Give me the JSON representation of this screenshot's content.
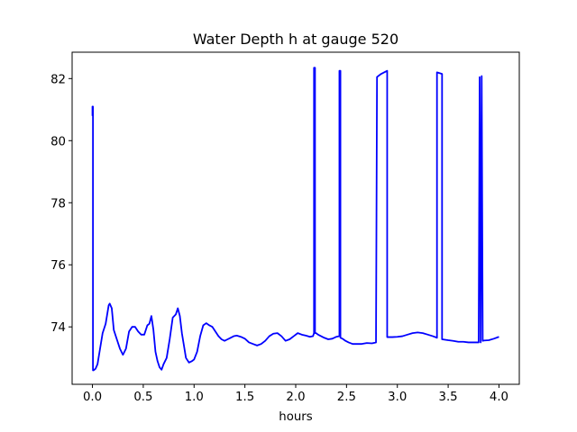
{
  "chart_data": {
    "type": "line",
    "title": "Water Depth h at gauge 520",
    "xlabel": "hours",
    "ylabel": "",
    "xlim": [
      -0.2,
      4.2
    ],
    "ylim": [
      72.15,
      82.85
    ],
    "xticks": [
      0.0,
      0.5,
      1.0,
      1.5,
      2.0,
      2.5,
      3.0,
      3.5,
      4.0
    ],
    "xtick_labels": [
      "0.0",
      "0.5",
      "1.0",
      "1.5",
      "2.0",
      "2.5",
      "3.0",
      "3.5",
      "4.0"
    ],
    "yticks": [
      74,
      76,
      78,
      80,
      82
    ],
    "ytick_labels": [
      "74",
      "76",
      "78",
      "80",
      "82"
    ],
    "grid": false,
    "series": [
      {
        "color": "#0000ff",
        "x": [
          0.0,
          0.0,
          0.005,
          0.005,
          0.01,
          0.01,
          0.03,
          0.05,
          0.07,
          0.1,
          0.13,
          0.16,
          0.17,
          0.19,
          0.21,
          0.24,
          0.27,
          0.3,
          0.33,
          0.36,
          0.39,
          0.42,
          0.45,
          0.48,
          0.51,
          0.54,
          0.56,
          0.58,
          0.6,
          0.62,
          0.64,
          0.66,
          0.68,
          0.7,
          0.73,
          0.76,
          0.79,
          0.82,
          0.84,
          0.86,
          0.88,
          0.9,
          0.92,
          0.95,
          0.98,
          1.0,
          1.03,
          1.06,
          1.09,
          1.12,
          1.15,
          1.18,
          1.21,
          1.24,
          1.27,
          1.3,
          1.33,
          1.36,
          1.39,
          1.42,
          1.46,
          1.5,
          1.54,
          1.58,
          1.62,
          1.66,
          1.7,
          1.74,
          1.78,
          1.82,
          1.86,
          1.9,
          1.94,
          1.98,
          2.02,
          2.06,
          2.1,
          2.14,
          2.17,
          2.18,
          2.18,
          2.19,
          2.19,
          2.2,
          2.22,
          2.25,
          2.28,
          2.32,
          2.36,
          2.4,
          2.43,
          2.43,
          2.44,
          2.44,
          2.46,
          2.49,
          2.52,
          2.56,
          2.6,
          2.65,
          2.7,
          2.75,
          2.79,
          2.8,
          2.8,
          2.84,
          2.9,
          2.9,
          2.95,
          3.0,
          3.05,
          3.1,
          3.15,
          3.2,
          3.25,
          3.3,
          3.35,
          3.39,
          3.39,
          3.44,
          3.44,
          3.5,
          3.55,
          3.6,
          3.65,
          3.7,
          3.75,
          3.8,
          3.81,
          3.81,
          3.82,
          3.82,
          3.83,
          3.83,
          3.84,
          3.84,
          3.85,
          3.9,
          3.95,
          4.0
        ],
        "y": [
          80.8,
          81.1,
          81.1,
          72.6,
          72.6,
          72.6,
          72.65,
          72.8,
          73.2,
          73.8,
          74.1,
          74.7,
          74.75,
          74.6,
          73.9,
          73.6,
          73.3,
          73.1,
          73.3,
          73.85,
          74.0,
          74.0,
          73.85,
          73.75,
          73.75,
          74.05,
          74.1,
          74.35,
          73.9,
          73.2,
          72.9,
          72.7,
          72.62,
          72.8,
          73.0,
          73.6,
          74.3,
          74.4,
          74.6,
          74.35,
          73.8,
          73.4,
          73.0,
          72.85,
          72.9,
          72.95,
          73.2,
          73.7,
          74.05,
          74.12,
          74.05,
          74.0,
          73.85,
          73.7,
          73.6,
          73.55,
          73.6,
          73.65,
          73.7,
          73.72,
          73.68,
          73.62,
          73.5,
          73.45,
          73.4,
          73.45,
          73.55,
          73.7,
          73.78,
          73.8,
          73.7,
          73.55,
          73.6,
          73.7,
          73.8,
          73.75,
          73.72,
          73.68,
          73.7,
          73.8,
          82.35,
          82.35,
          73.8,
          73.8,
          73.75,
          73.7,
          73.65,
          73.6,
          73.62,
          73.68,
          73.7,
          82.25,
          82.25,
          73.65,
          73.62,
          73.55,
          73.5,
          73.45,
          73.45,
          73.45,
          73.48,
          73.47,
          73.5,
          82.05,
          82.05,
          82.15,
          82.25,
          73.67,
          73.67,
          73.68,
          73.7,
          73.75,
          73.8,
          73.82,
          73.8,
          73.75,
          73.7,
          73.65,
          82.2,
          82.15,
          73.6,
          73.57,
          73.55,
          73.52,
          73.52,
          73.5,
          73.5,
          73.5,
          82.05,
          82.05,
          73.5,
          73.5,
          82.08,
          82.08,
          73.55,
          73.55,
          73.56,
          73.57,
          73.62,
          73.68
        ]
      }
    ]
  }
}
